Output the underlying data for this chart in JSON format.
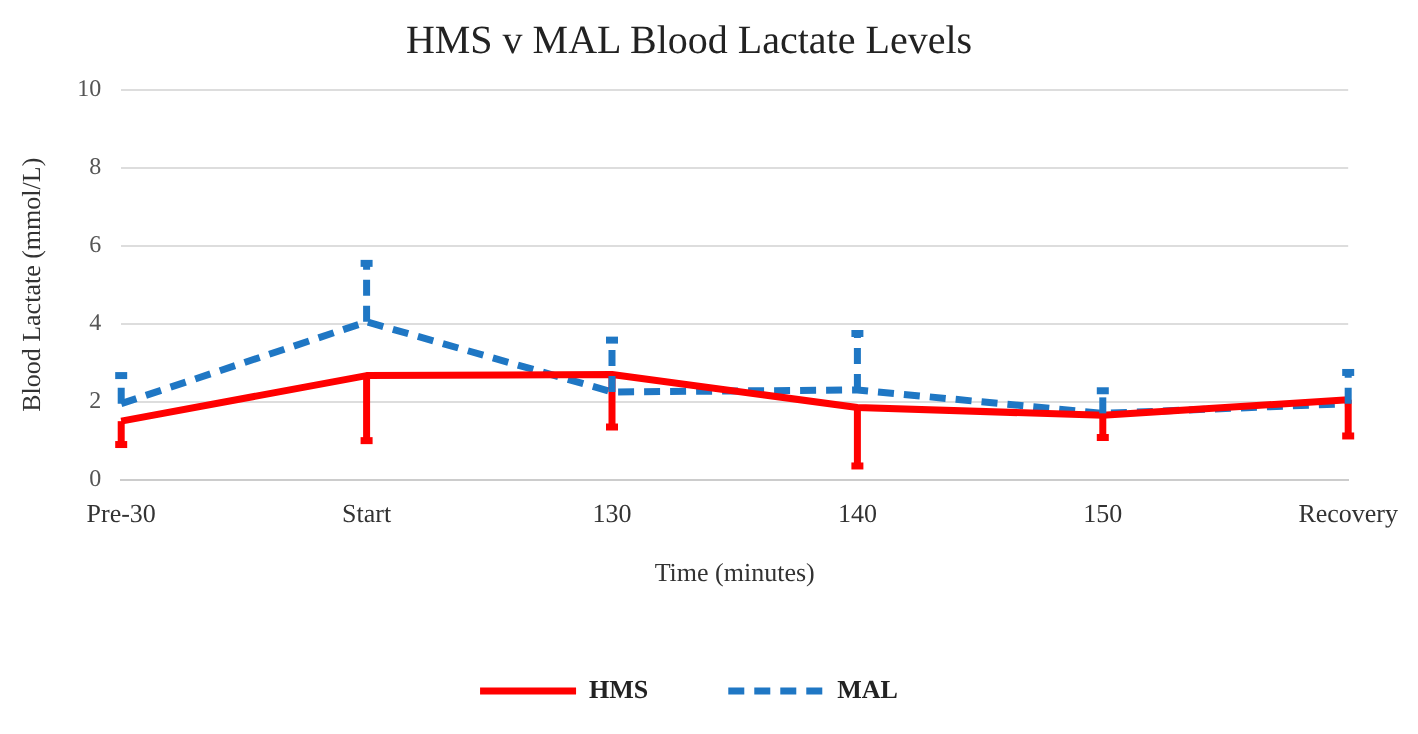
{
  "chart_data": {
    "type": "line",
    "title": "HMS v MAL Blood Lactate Levels",
    "xlabel": "Time (minutes)",
    "ylabel": "Blood Lactate (mmol/L)",
    "categories": [
      "Pre-30",
      "Start",
      "130",
      "140",
      "150",
      "Recovery"
    ],
    "series": [
      {
        "name": "HMS",
        "color": "#ff0000",
        "line_style": "solid",
        "values": [
          1.5,
          2.67,
          2.7,
          1.85,
          1.65,
          2.05
        ],
        "errors": [
          [
            0.9,
            1.5
          ],
          [
            1.0,
            2.67
          ],
          [
            1.35,
            2.7
          ],
          [
            0.35,
            1.85
          ],
          [
            1.08,
            1.65
          ],
          [
            1.12,
            2.05
          ]
        ]
      },
      {
        "name": "MAL",
        "color": "#1f77c4",
        "line_style": "dashed",
        "values": [
          1.95,
          4.05,
          2.25,
          2.3,
          1.7,
          1.95
        ],
        "errors": [
          [
            1.95,
            2.67
          ],
          [
            4.05,
            5.55
          ],
          [
            2.25,
            3.58
          ],
          [
            2.3,
            3.75
          ],
          [
            1.7,
            2.28
          ],
          [
            1.95,
            2.75
          ]
        ]
      }
    ],
    "ylim": [
      0,
      10
    ],
    "yticks": [
      0,
      2,
      4,
      6,
      8,
      10
    ],
    "grid": "y",
    "legend": "bottom",
    "marker": "none"
  }
}
